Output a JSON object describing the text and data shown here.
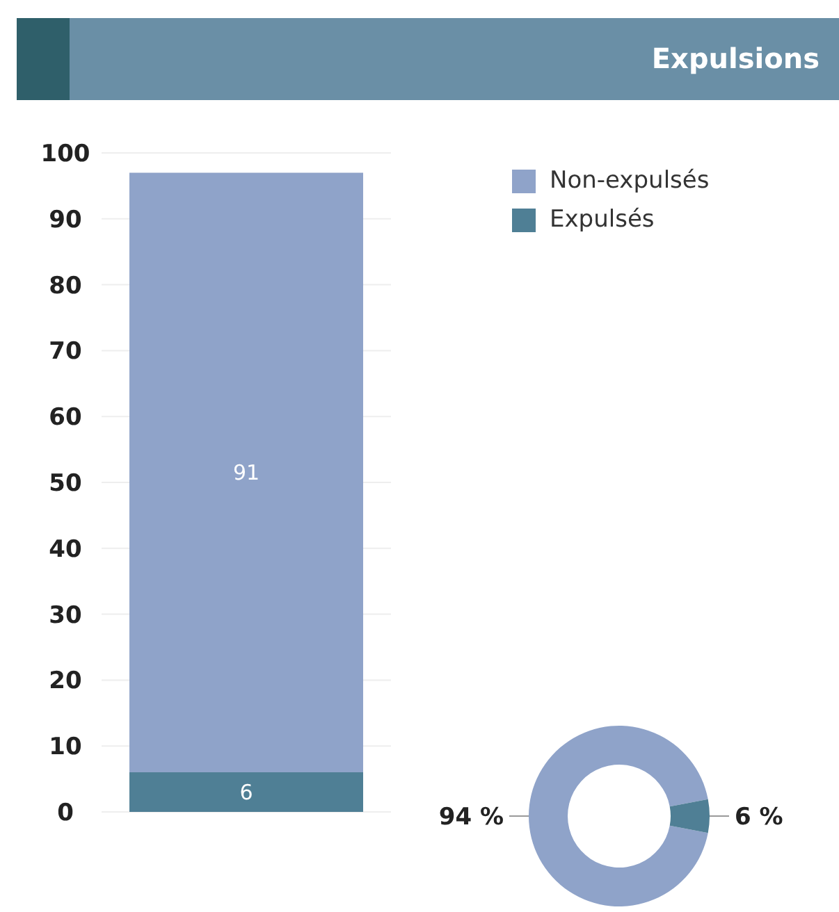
{
  "chart_data": [
    {
      "type": "bar",
      "categories": [
        null
      ],
      "stacked": true,
      "series": [
        {
          "name": "Expulsés",
          "color": "#4f7f95",
          "values": [
            6
          ]
        },
        {
          "name": "Non-expulsés",
          "color": "#8fa3c9",
          "values": [
            91
          ]
        }
      ],
      "ylim": [
        0,
        100
      ],
      "yticks": [
        0,
        10,
        20,
        30,
        40,
        50,
        60,
        70,
        80,
        90,
        100
      ],
      "grid": "y",
      "data_labels": true,
      "legend": "top right"
    },
    {
      "type": "donut",
      "title": "Expulsions",
      "categories": [
        null,
        null
      ],
      "values": [
        94,
        6
      ],
      "colors": [
        "#8fa3c9",
        "#4f7f95"
      ],
      "value_labels": [
        "94 %",
        "6 %"
      ]
    }
  ]
}
